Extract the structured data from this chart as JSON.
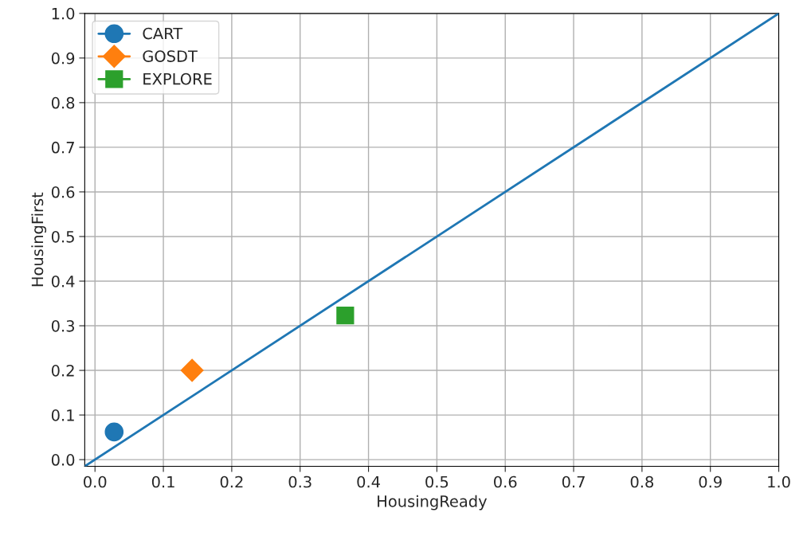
{
  "chart_data": {
    "type": "line",
    "xlabel": "HousingReady",
    "ylabel": "HousingFirst",
    "xlim": [
      -0.015,
      1.0
    ],
    "ylim": [
      -0.015,
      1.0
    ],
    "xticks": [
      {
        "value": 0,
        "label": "0.0"
      },
      0.1,
      0.2,
      0.3,
      0.4,
      0.5,
      0.6,
      0.7,
      0.8,
      0.9,
      {
        "value": 1,
        "label": "1.0"
      }
    ],
    "yticks": [
      {
        "value": 0,
        "label": "0.0"
      },
      0.1,
      0.2,
      0.3,
      0.4,
      0.5,
      0.6,
      0.7,
      0.8,
      0.9,
      {
        "value": 1,
        "label": "1.0"
      }
    ],
    "grid": true,
    "legend": "top left",
    "series": [
      {
        "color": "#1f77b4",
        "x": [
          -0.015,
          1.0
        ],
        "values": [
          -0.015,
          1.0
        ],
        "marker": "none"
      },
      {
        "name": "CART",
        "color": "#1f77b4",
        "x": [
          0.028
        ],
        "values": [
          0.062
        ],
        "marker": "circle"
      },
      {
        "name": "GOSDT",
        "color": "#ff7f0e",
        "x": [
          0.142
        ],
        "values": [
          0.2
        ],
        "marker": "diamond"
      },
      {
        "name": "EXPLORE",
        "color": "#2ca02c",
        "x": [
          0.366
        ],
        "values": [
          0.323
        ],
        "marker": "square"
      }
    ]
  }
}
